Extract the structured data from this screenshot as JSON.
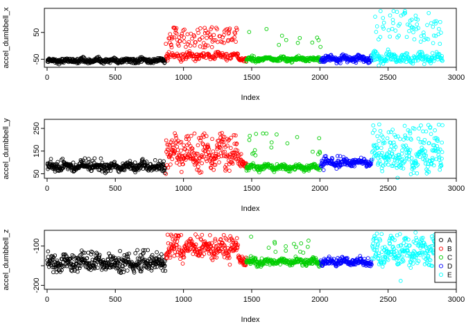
{
  "chart_data": [
    {
      "type": "scatter",
      "xlabel": "Index",
      "ylabel": "accel_dumbbell_x",
      "xlim": [
        -20,
        3000
      ],
      "ylim": [
        -80,
        140
      ],
      "xticks": [
        0,
        500,
        1000,
        1500,
        2000,
        2500,
        3000
      ],
      "xtick_labels": [
        "0",
        "500",
        "1000",
        "1500",
        "2000",
        "2500",
        "3000"
      ],
      "yticks": [
        -50,
        50
      ],
      "ytick_labels": [
        "-50",
        "50"
      ],
      "series": [
        {
          "class": "A",
          "color": "#000000",
          "x_range": [
            1,
            868
          ],
          "baseline": -55,
          "spread": 7,
          "spikes": 0,
          "spike_max": -30
        },
        {
          "class": "B",
          "color": "#ff0000",
          "x_range": [
            870,
            1400
          ],
          "baseline": -38,
          "spread": 12,
          "spikes": 0.35,
          "spike_max": 70
        },
        {
          "class": "B",
          "color": "#ff0000",
          "x_range": [
            1400,
            1460
          ],
          "baseline": -50,
          "spread": 5,
          "spikes": 0,
          "spike_max": -40
        },
        {
          "class": "C",
          "color": "#00cd00",
          "x_range": [
            1460,
            2005
          ],
          "baseline": -50,
          "spread": 7,
          "spikes": 0.05,
          "spike_max": 70
        },
        {
          "class": "D",
          "color": "#0000ff",
          "x_range": [
            2007,
            2380
          ],
          "baseline": -48,
          "spread": 9,
          "spikes": 0,
          "spike_max": -30
        },
        {
          "class": "E",
          "color": "#00ffff",
          "x_range": [
            2382,
            2900
          ],
          "baseline": -45,
          "spread": 16,
          "spikes": 0.3,
          "spike_max": 130
        }
      ]
    },
    {
      "type": "scatter",
      "xlabel": "Index",
      "ylabel": "accel_dumbbell_y",
      "xlim": [
        -20,
        3000
      ],
      "ylim": [
        30,
        290
      ],
      "xticks": [
        0,
        500,
        1000,
        1500,
        2000,
        2500,
        3000
      ],
      "xtick_labels": [
        "0",
        "500",
        "1000",
        "1500",
        "2000",
        "2500",
        "3000"
      ],
      "yticks": [
        50,
        150,
        250
      ],
      "ytick_labels": [
        "50",
        "150",
        "250"
      ],
      "series": [
        {
          "class": "A",
          "color": "#000000",
          "x_range": [
            1,
            868
          ],
          "baseline": 80,
          "spread": 14,
          "spikes": 0.05,
          "spike_max": 120
        },
        {
          "class": "B",
          "color": "#ff0000",
          "x_range": [
            870,
            1400
          ],
          "baseline": 130,
          "spread": 45,
          "spikes": 0.25,
          "spike_max": 230
        },
        {
          "class": "B",
          "color": "#ff0000",
          "x_range": [
            1400,
            1460
          ],
          "baseline": 100,
          "spread": 15,
          "spikes": 0.1,
          "spike_max": 140
        },
        {
          "class": "C",
          "color": "#00cd00",
          "x_range": [
            1460,
            2005
          ],
          "baseline": 78,
          "spread": 10,
          "spikes": 0.05,
          "spike_max": 230
        },
        {
          "class": "D",
          "color": "#0000ff",
          "x_range": [
            2007,
            2380
          ],
          "baseline": 98,
          "spread": 14,
          "spikes": 0.05,
          "spike_max": 130
        },
        {
          "class": "E",
          "color": "#00ffff",
          "x_range": [
            2382,
            2900
          ],
          "baseline": 120,
          "spread": 45,
          "spikes": 0.25,
          "spike_max": 270
        }
      ]
    },
    {
      "type": "scatter",
      "xlabel": "Index",
      "ylabel": "accel_dumbbell_z",
      "xlim": [
        -20,
        3000
      ],
      "ylim": [
        -210,
        -60
      ],
      "xticks": [
        0,
        500,
        1000,
        1500,
        2000,
        2500,
        3000
      ],
      "xtick_labels": [
        "0",
        "500",
        "1000",
        "1500",
        "2000",
        "2500",
        "3000"
      ],
      "yticks": [
        -200,
        -150,
        -100
      ],
      "ytick_labels": [
        "-200",
        "",
        "-100"
      ],
      "series": [
        {
          "class": "A",
          "color": "#000000",
          "x_range": [
            1,
            868
          ],
          "baseline": -145,
          "spread": 15,
          "spikes": 0.1,
          "spike_max": -110
        },
        {
          "class": "B",
          "color": "#ff0000",
          "x_range": [
            870,
            1400
          ],
          "baseline": -110,
          "spread": 18,
          "spikes": 0.15,
          "spike_max": -70
        },
        {
          "class": "B",
          "color": "#ff0000",
          "x_range": [
            1400,
            1460
          ],
          "baseline": -135,
          "spread": 10,
          "spikes": 0,
          "spike_max": -110
        },
        {
          "class": "C",
          "color": "#00cd00",
          "x_range": [
            1460,
            2005
          ],
          "baseline": -140,
          "spread": 7,
          "spikes": 0.04,
          "spike_max": -75
        },
        {
          "class": "D",
          "color": "#0000ff",
          "x_range": [
            2007,
            2380
          ],
          "baseline": -140,
          "spread": 8,
          "spikes": 0.03,
          "spike_max": -120
        },
        {
          "class": "E",
          "color": "#00ffff",
          "x_range": [
            2382,
            2900
          ],
          "baseline": -120,
          "spread": 22,
          "spikes": 0.2,
          "spike_max": -65
        }
      ],
      "legend": {
        "placement": "right",
        "entries": [
          {
            "label": "A",
            "color": "#000000"
          },
          {
            "label": "B",
            "color": "#ff0000"
          },
          {
            "label": "C",
            "color": "#00cd00"
          },
          {
            "label": "D",
            "color": "#0000ff"
          },
          {
            "label": "E",
            "color": "#00ffff"
          }
        ]
      }
    }
  ]
}
